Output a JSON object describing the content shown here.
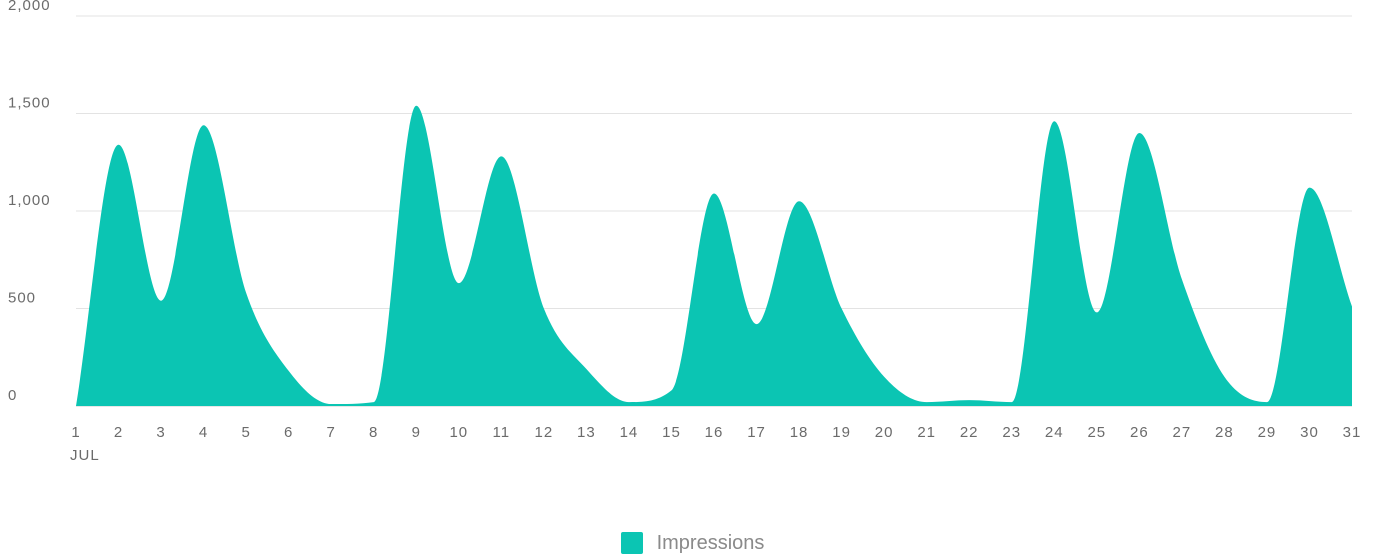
{
  "chart_data": {
    "type": "area",
    "x_unit_label": "JUL",
    "x": [
      1,
      2,
      3,
      4,
      5,
      6,
      7,
      8,
      9,
      10,
      11,
      12,
      13,
      14,
      15,
      16,
      17,
      18,
      19,
      20,
      21,
      22,
      23,
      24,
      25,
      26,
      27,
      28,
      29,
      30,
      31
    ],
    "y_ticks": [
      "0",
      "500",
      "1,000",
      "1,500",
      "2,000"
    ],
    "ylim": [
      0,
      2000
    ],
    "grid": true,
    "legend_position": "bottom-center",
    "series": [
      {
        "name": "Impressions",
        "color": "#0bc5b3",
        "values": [
          0,
          1340,
          540,
          1440,
          580,
          180,
          10,
          20,
          1540,
          630,
          1280,
          500,
          190,
          20,
          80,
          1090,
          420,
          1050,
          500,
          150,
          20,
          30,
          20,
          1460,
          480,
          1400,
          650,
          150,
          20,
          1120,
          510
        ]
      }
    ]
  }
}
